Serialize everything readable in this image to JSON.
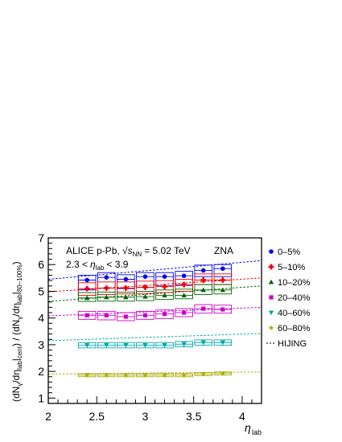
{
  "chart_data": {
    "type": "scatter",
    "xlabel": "η_lab",
    "ylabel": "(dN_γ/dη_lab|_cent) / (dN_γ/dη_lab|_80–100%)",
    "xlim": [
      2.0,
      4.2
    ],
    "ylim": [
      0.8,
      7.0
    ],
    "x_ticks": [
      2,
      2.5,
      3,
      3.5,
      4
    ],
    "y_ticks": [
      1,
      2,
      3,
      4,
      5,
      6,
      7
    ],
    "grid": false,
    "legend_position": "right",
    "annotations": {
      "line1_prefix": "ALICE p-Pb, ",
      "line1_energy": "= 5.02 TeV",
      "detector": "ZNA",
      "eta_range_low": "2.3 <",
      "eta_range_high": "< 3.9"
    },
    "x": [
      2.4,
      2.6,
      2.8,
      3.0,
      3.2,
      3.4,
      3.6,
      3.8
    ],
    "series": [
      {
        "name": "0–5%",
        "marker": "circle",
        "color": "#0000ee",
        "values": [
          5.42,
          5.52,
          5.45,
          5.55,
          5.55,
          5.58,
          5.78,
          5.85
        ],
        "sys_low": [
          5.05,
          5.12,
          5.1,
          5.15,
          5.2,
          5.22,
          5.55,
          5.55
        ],
        "sys_high": [
          5.6,
          5.7,
          5.62,
          5.7,
          5.7,
          5.75,
          5.98,
          6.0
        ]
      },
      {
        "name": "5–10%",
        "marker": "cross",
        "color": "#ee0000",
        "values": [
          5.1,
          5.12,
          5.12,
          5.15,
          5.18,
          5.25,
          5.42,
          5.42
        ],
        "sys_low": [
          4.85,
          4.88,
          4.9,
          4.92,
          4.95,
          5.0,
          5.25,
          5.25
        ],
        "sys_high": [
          5.32,
          5.35,
          5.35,
          5.38,
          5.4,
          5.45,
          5.65,
          5.65
        ]
      },
      {
        "name": "10–20%",
        "marker": "triangle-up",
        "color": "#006600",
        "values": [
          4.75,
          4.78,
          4.78,
          4.8,
          4.85,
          4.85,
          5.05,
          5.05
        ],
        "sys_low": [
          4.62,
          4.63,
          4.63,
          4.65,
          4.7,
          4.72,
          4.88,
          4.9
        ],
        "sys_high": [
          4.95,
          4.97,
          4.97,
          5.0,
          5.05,
          5.08,
          5.25,
          5.25
        ]
      },
      {
        "name": "20–40%",
        "marker": "square",
        "color": "#cc00cc",
        "values": [
          4.1,
          4.1,
          4.05,
          4.1,
          4.15,
          4.2,
          4.35,
          4.32
        ],
        "sys_low": [
          3.95,
          3.93,
          3.9,
          3.95,
          3.98,
          4.05,
          4.18,
          4.18
        ],
        "sys_high": [
          4.25,
          4.25,
          4.2,
          4.25,
          4.3,
          4.35,
          4.5,
          4.48
        ]
      },
      {
        "name": "40–60%",
        "marker": "triangle-down",
        "color": "#00aaaa",
        "values": [
          2.98,
          2.98,
          2.98,
          2.98,
          2.98,
          3.02,
          3.08,
          3.08
        ],
        "sys_low": [
          2.88,
          2.88,
          2.88,
          2.88,
          2.88,
          2.92,
          2.98,
          2.98
        ],
        "sys_high": [
          3.08,
          3.08,
          3.08,
          3.08,
          3.08,
          3.12,
          3.18,
          3.18
        ]
      },
      {
        "name": "60–80%",
        "marker": "star",
        "color": "#aaaa00",
        "values": [
          1.86,
          1.86,
          1.86,
          1.86,
          1.86,
          1.86,
          1.9,
          1.92
        ],
        "sys_low": [
          1.8,
          1.8,
          1.8,
          1.8,
          1.8,
          1.8,
          1.84,
          1.86
        ],
        "sys_high": [
          1.92,
          1.92,
          1.92,
          1.92,
          1.92,
          1.92,
          1.96,
          1.98
        ]
      }
    ],
    "model_curves": {
      "name": "HIJING",
      "style": "dotted",
      "x": [
        2.0,
        4.2
      ],
      "curves": [
        {
          "color": "#0000ee",
          "y": [
            5.45,
            6.15
          ]
        },
        {
          "color": "#ee0000",
          "y": [
            4.98,
            5.5
          ]
        },
        {
          "color": "#006600",
          "y": [
            4.62,
            5.2
          ]
        },
        {
          "color": "#cc00cc",
          "y": [
            4.08,
            4.4
          ]
        },
        {
          "color": "#00aaaa",
          "y": [
            3.15,
            3.42
          ]
        },
        {
          "color": "#aaaa00",
          "y": [
            1.9,
            1.98
          ]
        }
      ]
    }
  }
}
